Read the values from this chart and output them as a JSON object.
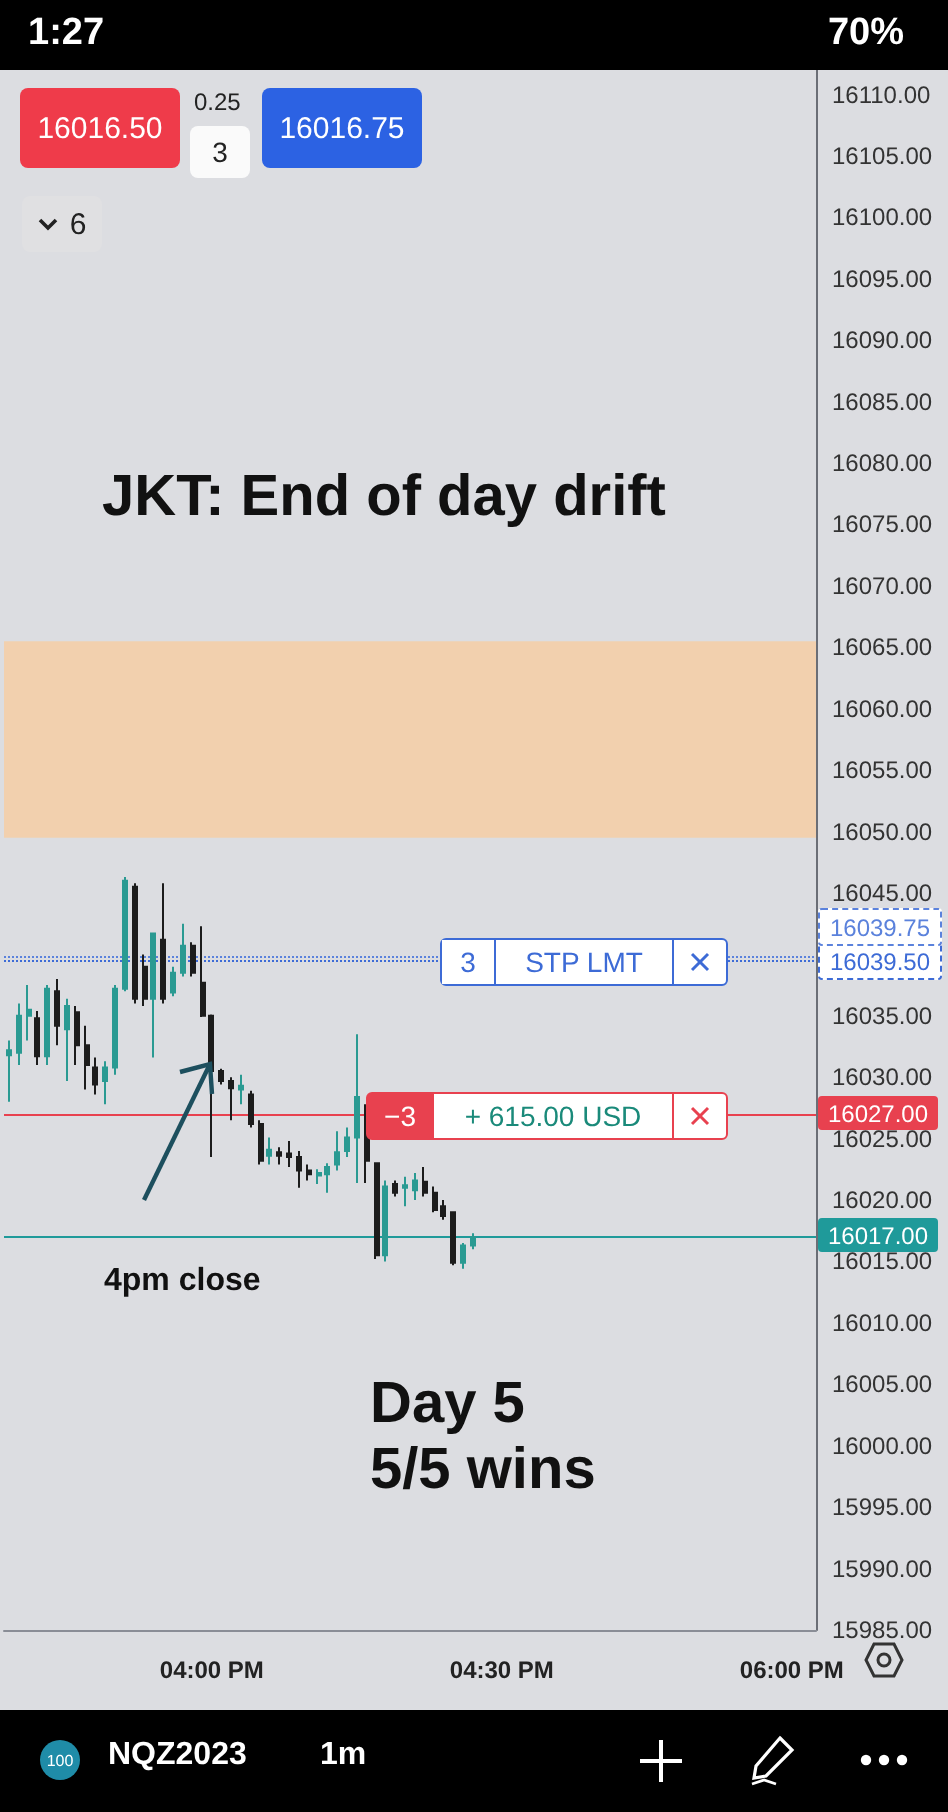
{
  "chart_data": {
    "type": "candlestick",
    "title": "JKT: End of day drift",
    "categories": [
      null,
      null,
      null,
      null,
      null,
      null,
      null,
      null,
      null,
      null,
      null,
      null,
      null,
      null,
      null,
      null,
      null,
      null,
      null,
      null,
      null,
      "04:00 PM",
      null,
      null,
      null,
      null,
      null,
      null,
      null,
      null,
      null,
      null,
      null,
      null,
      null,
      null,
      null,
      null,
      null,
      null,
      null,
      null,
      null,
      null,
      null,
      null,
      null,
      null,
      null,
      null,
      null,
      "04:30 PM",
      null,
      null,
      null,
      null,
      null,
      null,
      null,
      null,
      null,
      null,
      null,
      null,
      null,
      null,
      null,
      null,
      null,
      null,
      null,
      null,
      null,
      null,
      null,
      null,
      null,
      null,
      null,
      null,
      null,
      "06:00 PM",
      null,
      null
    ],
    "ohlc": [
      [
        16031.8,
        16033,
        16028,
        16032.2
      ],
      [
        16032,
        16036,
        16031,
        16035
      ],
      [
        16035,
        16037.5,
        16033,
        16035.5
      ],
      [
        16034.8,
        16035.4,
        16031,
        16031.7
      ],
      [
        16031.7,
        16037.5,
        16031,
        16037.2
      ],
      [
        16037,
        16038,
        16032.6,
        16034.2
      ],
      [
        16033.9,
        16036.4,
        16029.7,
        16035.8
      ],
      [
        16035.3,
        16035.8,
        16031,
        16032.6
      ],
      [
        16032.6,
        16034.2,
        16029,
        16031
      ],
      [
        16030.8,
        16031.6,
        16028.6,
        16029.4
      ],
      [
        16029.7,
        16031.3,
        16027.8,
        16030.8
      ],
      [
        16030.8,
        16037.5,
        16030.2,
        16037.2
      ],
      [
        16037.2,
        16046.3,
        16037,
        16046
      ],
      [
        16045.5,
        16045.8,
        16036,
        16036.4
      ],
      [
        16039,
        16040,
        16035.8,
        16036.4
      ],
      [
        16036.4,
        16041.7,
        16031.6,
        16041.7
      ],
      [
        16041.2,
        16045.8,
        16036,
        16036.4
      ],
      [
        16036.9,
        16039,
        16036.6,
        16038.5
      ],
      [
        16038.5,
        16042.5,
        16038.2,
        16040.7
      ],
      [
        16040.7,
        16041,
        16038.2,
        16038.5
      ],
      [
        16037.7,
        16042.3,
        16034.9,
        16035
      ],
      [
        16035,
        16035.1,
        16023.5,
        16030.5
      ],
      [
        16030.5,
        16030.7,
        16029.4,
        16029.7
      ],
      [
        16029.7,
        16030,
        16026.5,
        16029.1
      ],
      [
        16029,
        16030.2,
        16027.8,
        16029.3
      ],
      [
        16028.6,
        16028.9,
        16025.9,
        16026.2
      ],
      [
        16026.2,
        16026.5,
        16022.9,
        16023.2
      ],
      [
        16023.6,
        16025.1,
        16022.9,
        16024.1
      ],
      [
        16023.9,
        16024.3,
        16022.9,
        16023.6
      ],
      [
        16023.8,
        16024.8,
        16022.7,
        16023.5
      ],
      [
        16023.5,
        16024,
        16021,
        16022.4
      ],
      [
        16022.4,
        16022.9,
        16021.6,
        16022.1
      ],
      [
        16022,
        16022.5,
        16021.3,
        16022.2
      ],
      [
        16022.1,
        16023,
        16020.6,
        16022.7
      ],
      [
        16022.9,
        16025.6,
        16022.4,
        16023.9
      ],
      [
        16024,
        16025.9,
        16023.5,
        16025.1
      ],
      [
        16025.1,
        16033.5,
        16021.4,
        16028.4
      ],
      [
        16027.5,
        16027.8,
        16021.4,
        16023.2
      ],
      [
        16023,
        16023,
        16015.2,
        16015.5
      ],
      [
        16015.5,
        16021.6,
        16015,
        16021.1
      ],
      [
        16021.3,
        16021.6,
        16020.3,
        16020.6
      ],
      [
        16021,
        16021.9,
        16019.5,
        16021.2
      ],
      [
        16020.8,
        16022.2,
        16020,
        16021.6
      ],
      [
        16021.5,
        16022.7,
        16020.3,
        16020.6
      ],
      [
        16020.6,
        16021.1,
        16019,
        16019.2
      ],
      [
        16019.5,
        16020,
        16018.4,
        16018.7
      ],
      [
        16019,
        16019,
        16014.7,
        16014.9
      ],
      [
        16014.9,
        16016.5,
        16014.4,
        16016.3
      ],
      [
        16016.3,
        16017.3,
        16016,
        16017
      ],
      null,
      null,
      null,
      null,
      null,
      null,
      null,
      null,
      null,
      null,
      null,
      null,
      null,
      null,
      null,
      null,
      null,
      null,
      null,
      null,
      null,
      null,
      null,
      null,
      null,
      null,
      null,
      null,
      null,
      null,
      null,
      null,
      null,
      null,
      null
    ],
    "colors": [
      "#2a9a92",
      "#2a9a92",
      "#2a9a92",
      "#1c1c1c",
      "#2a9a92",
      "#1c1c1c",
      "#2a9a92",
      "#1c1c1c",
      "#1c1c1c",
      "#1c1c1c",
      "#2a9a92",
      "#2a9a92",
      "#2a9a92",
      "#1c1c1c",
      "#1c1c1c",
      "#2a9a92",
      "#1c1c1c",
      "#2a9a92",
      "#2a9a92",
      "#1c1c1c",
      "#1c1c1c",
      "#1c1c1c",
      "#1c1c1c",
      "#1c1c1c",
      "#2a9a92",
      "#1c1c1c",
      "#1c1c1c",
      "#2a9a92",
      "#1c1c1c",
      "#1c1c1c",
      "#1c1c1c",
      "#1c1c1c",
      "#2a9a92",
      "#2a9a92",
      "#2a9a92",
      "#2a9a92",
      "#2a9a92",
      "#1c1c1c",
      "#1c1c1c",
      "#2a9a92",
      "#1c1c1c",
      "#2a9a92",
      "#2a9a92",
      "#1c1c1c",
      "#1c1c1c",
      "#1c1c1c",
      "#1c1c1c",
      "#2a9a92",
      "#2a9a92",
      null,
      null,
      null,
      null,
      null,
      null,
      null,
      null,
      null,
      null,
      null,
      null,
      null,
      null,
      null,
      null,
      null,
      null,
      null,
      null,
      null,
      null,
      null,
      null,
      null,
      null,
      null,
      null,
      null,
      null,
      null,
      null,
      null,
      null,
      null
    ],
    "ylim": [
      15985,
      16112
    ],
    "yticks": [
      {
        "value": 15985,
        "label": "15985.00"
      },
      {
        "value": 15990,
        "label": "15990.00"
      },
      {
        "value": 15995,
        "label": "15995.00"
      },
      {
        "value": 16000,
        "label": "16000.00"
      },
      {
        "value": 16005,
        "label": "16005.00"
      },
      {
        "value": 16010,
        "label": "16010.00"
      },
      {
        "value": 16015,
        "label": "16015.00"
      },
      {
        "value": 16020,
        "label": "16020.00"
      },
      {
        "value": 16025,
        "label": "16025.00"
      },
      {
        "value": 16030,
        "label": "16030.00"
      },
      {
        "value": 16035,
        "label": "16035.00"
      },
      {
        "value": 16045,
        "label": "16045.00"
      },
      {
        "value": 16050,
        "label": "16050.00"
      },
      {
        "value": 16055,
        "label": "16055.00"
      },
      {
        "value": 16060,
        "label": "16060.00"
      },
      {
        "value": 16065,
        "label": "16065.00"
      },
      {
        "value": 16070,
        "label": "16070.00"
      },
      {
        "value": 16075,
        "label": "16075.00"
      },
      {
        "value": 16080,
        "label": "16080.00"
      },
      {
        "value": 16085,
        "label": "16085.00"
      },
      {
        "value": 16090,
        "label": "16090.00"
      },
      {
        "value": 16095,
        "label": "16095.00"
      },
      {
        "value": 16100,
        "label": "16100.00"
      },
      {
        "value": 16105,
        "label": "16105.00"
      },
      {
        "value": 16110,
        "label": "16110.00"
      }
    ],
    "bands": [
      {
        "axis": "y",
        "from": 16049.5,
        "to": 16065.5,
        "color": "#f2d0ae"
      }
    ],
    "ref_lines": [
      {
        "axis": "y",
        "value": 16039.75,
        "label": "16039.75",
        "color": "#5b82dc",
        "line_style": "dotted"
      },
      {
        "axis": "y",
        "value": 16039.5,
        "label": "16039.50",
        "color": "#3d6bd6",
        "line_style": "dotted"
      },
      {
        "axis": "y",
        "value": 16027,
        "label": "16027.00",
        "color": "#e8414f",
        "line_style": "solid"
      },
      {
        "axis": "y",
        "value": 16017,
        "label": "16017.00",
        "color": "#1f9a9a",
        "line_style": "solid"
      }
    ],
    "annotations": [
      "4pm close",
      "Day 5",
      "5/5 wins",
      {
        "text": "3",
        "y": 16039.5
      },
      {
        "text": "STP LMT",
        "y": 16039.5
      },
      {
        "text": "−3",
        "y": 16027
      },
      {
        "text": "+ 615.00 USD",
        "y": 16027
      },
      "16016.50",
      "0.25",
      "3",
      "16016.75",
      "6",
      "1:27",
      "70%",
      "NQZ2023",
      "1m",
      "100"
    ]
  }
}
